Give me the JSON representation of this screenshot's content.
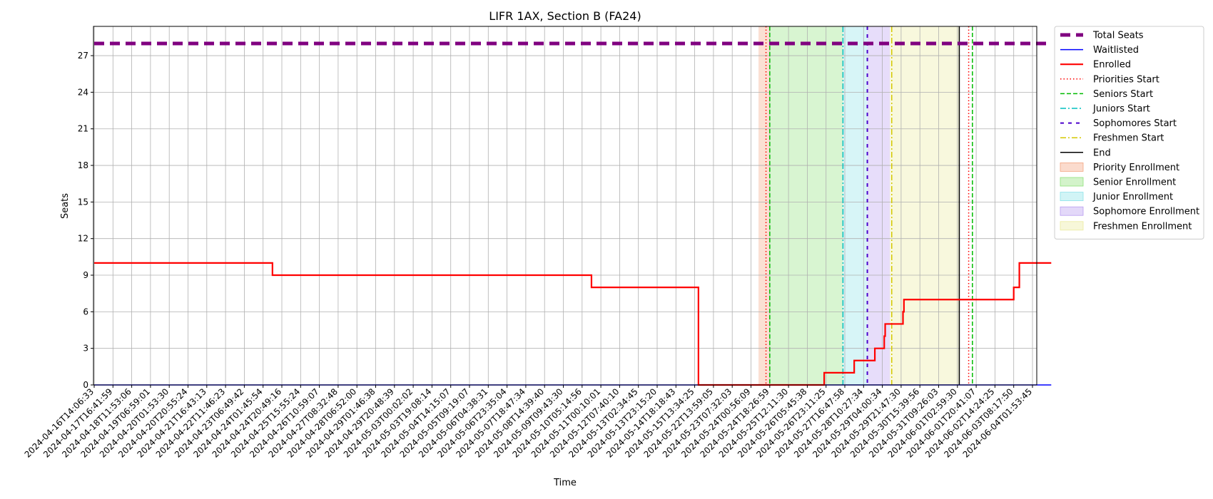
{
  "chart_data": {
    "type": "line",
    "title": "LIFR 1AX, Section B (FA24)",
    "xlabel": "Time",
    "ylabel": "Seats",
    "ylim": [
      0,
      29.4
    ],
    "yticks": [
      0,
      3,
      6,
      9,
      12,
      15,
      18,
      21,
      24,
      27
    ],
    "grid": true,
    "legend_position": "outside-top-right",
    "x_tick_labels": [
      "2024-04-16T14:06:33",
      "2024-04-17T16:41:59",
      "2024-04-18T11:53:06",
      "2024-04-19T06:59:01",
      "2024-04-20T01:53:30",
      "2024-04-20T20:55:24",
      "2024-04-21T16:43:13",
      "2024-04-22T11:46:23",
      "2024-04-23T06:49:42",
      "2024-04-24T01:45:54",
      "2024-04-24T20:49:16",
      "2024-04-25T15:55:24",
      "2024-04-26T10:59:07",
      "2024-04-27T08:32:48",
      "2024-04-28T06:52:00",
      "2024-04-29T01:46:38",
      "2024-04-29T20:48:39",
      "2024-05-03T00:02:02",
      "2024-05-03T19:08:14",
      "2024-05-04T14:15:07",
      "2024-05-05T09:19:07",
      "2024-05-06T04:38:31",
      "2024-05-06T23:35:04",
      "2024-05-07T18:47:34",
      "2024-05-08T14:39:40",
      "2024-05-09T09:43:30",
      "2024-05-10T05:14:56",
      "2024-05-11T00:10:01",
      "2024-05-12T07:40:10",
      "2024-05-13T02:34:45",
      "2024-05-13T23:15:20",
      "2024-05-14T18:18:43",
      "2024-05-15T13:34:25",
      "2024-05-22T13:59:05",
      "2024-05-23T07:32:03",
      "2024-05-24T00:56:09",
      "2024-05-24T18:26:59",
      "2024-05-25T12:11:30",
      "2024-05-26T05:45:38",
      "2024-05-26T23:11:25",
      "2024-05-27T16:47:58",
      "2024-05-28T10:27:34",
      "2024-05-29T04:00:34",
      "2024-05-29T21:47:30",
      "2024-05-30T15:39:56",
      "2024-05-31T09:26:03",
      "2024-06-01T02:59:30",
      "2024-06-01T20:41:07",
      "2024-06-02T14:24:25",
      "2024-06-03T08:17:50",
      "2024-06-04T01:53:45"
    ],
    "series": [
      {
        "name": "Total Seats",
        "color": "#800080",
        "style": "dashed-thick",
        "points": [
          [
            0,
            28
          ],
          [
            51,
            28
          ]
        ]
      },
      {
        "name": "Waitlisted",
        "color": "#0000ff",
        "style": "solid",
        "points": [
          [
            0,
            0
          ],
          [
            51,
            0
          ]
        ]
      },
      {
        "name": "Enrolled",
        "color": "#ff0000",
        "style": "step",
        "points": [
          [
            0,
            10
          ],
          [
            9.5,
            10
          ],
          [
            9.5,
            9
          ],
          [
            26.5,
            9
          ],
          [
            26.5,
            8
          ],
          [
            32.2,
            8
          ],
          [
            32.2,
            0
          ],
          [
            38.9,
            0
          ],
          [
            38.9,
            1
          ],
          [
            40.5,
            1
          ],
          [
            40.5,
            2
          ],
          [
            41.6,
            2
          ],
          [
            41.6,
            3
          ],
          [
            42.1,
            3
          ],
          [
            42.1,
            4
          ],
          [
            42.15,
            4
          ],
          [
            42.15,
            5
          ],
          [
            43.1,
            5
          ],
          [
            43.1,
            6
          ],
          [
            43.15,
            6
          ],
          [
            43.15,
            7
          ],
          [
            49.0,
            7
          ],
          [
            49.0,
            8
          ],
          [
            49.3,
            8
          ],
          [
            49.3,
            10
          ],
          [
            51,
            10
          ]
        ]
      }
    ],
    "markers": [
      {
        "name": "Priorities Start",
        "x": 35.8,
        "color": "#ff0000",
        "style": "dotted"
      },
      {
        "name": "Seniors Start",
        "x": 36.0,
        "color": "#00bb00",
        "style": "dashed"
      },
      {
        "name": "Juniors Start",
        "x": 39.9,
        "color": "#00bfbf",
        "style": "dashdot"
      },
      {
        "name": "Sophomores Start",
        "x": 41.2,
        "color": "#4b00cc",
        "style": "loosedash"
      },
      {
        "name": "Freshmen Start",
        "x": 42.5,
        "color": "#d4c800",
        "style": "dashdot"
      },
      {
        "name": "End",
        "x": 46.1,
        "color": "#000000",
        "style": "solid"
      },
      {
        "name": "",
        "x": 46.6,
        "color": "#ff0000",
        "style": "dotted"
      },
      {
        "name": "",
        "x": 46.8,
        "color": "#00bb00",
        "style": "dashed"
      }
    ],
    "regions": [
      {
        "name": "Priority Enrollment",
        "from": 35.4,
        "to": 36.0,
        "color": "#f4a582"
      },
      {
        "name": "Senior Enrollment",
        "from": 36.0,
        "to": 39.9,
        "color": "#90e27a"
      },
      {
        "name": "Junior Enrollment",
        "from": 39.9,
        "to": 41.2,
        "color": "#8de3e9"
      },
      {
        "name": "Sophomore Enrollment",
        "from": 41.2,
        "to": 42.4,
        "color": "#b99df0"
      },
      {
        "name": "Freshmen Enrollment",
        "from": 42.4,
        "to": 46.1,
        "color": "#ecec9f"
      }
    ],
    "legend": [
      {
        "label": "Total Seats",
        "kind": "line",
        "color": "#800080",
        "style": "dashed-thick"
      },
      {
        "label": "Waitlisted",
        "kind": "line",
        "color": "#0000ff",
        "style": "solid"
      },
      {
        "label": "Enrolled",
        "kind": "line",
        "color": "#ff0000",
        "style": "solid-thick"
      },
      {
        "label": "Priorities Start",
        "kind": "line",
        "color": "#ff0000",
        "style": "dotted"
      },
      {
        "label": "Seniors Start",
        "kind": "line",
        "color": "#00bb00",
        "style": "dashed"
      },
      {
        "label": "Juniors Start",
        "kind": "line",
        "color": "#00bfbf",
        "style": "dashdot"
      },
      {
        "label": "Sophomores Start",
        "kind": "line",
        "color": "#4b00cc",
        "style": "loosedash"
      },
      {
        "label": "Freshmen Start",
        "kind": "line",
        "color": "#d4c800",
        "style": "dashdot"
      },
      {
        "label": "End",
        "kind": "line",
        "color": "#000000",
        "style": "solid"
      },
      {
        "label": "Priority Enrollment",
        "kind": "patch",
        "color": "#f4a582"
      },
      {
        "label": "Senior Enrollment",
        "kind": "patch",
        "color": "#90e27a"
      },
      {
        "label": "Junior Enrollment",
        "kind": "patch",
        "color": "#8de3e9"
      },
      {
        "label": "Sophomore Enrollment",
        "kind": "patch",
        "color": "#b99df0"
      },
      {
        "label": "Freshmen Enrollment",
        "kind": "patch",
        "color": "#ecec9f"
      }
    ]
  }
}
